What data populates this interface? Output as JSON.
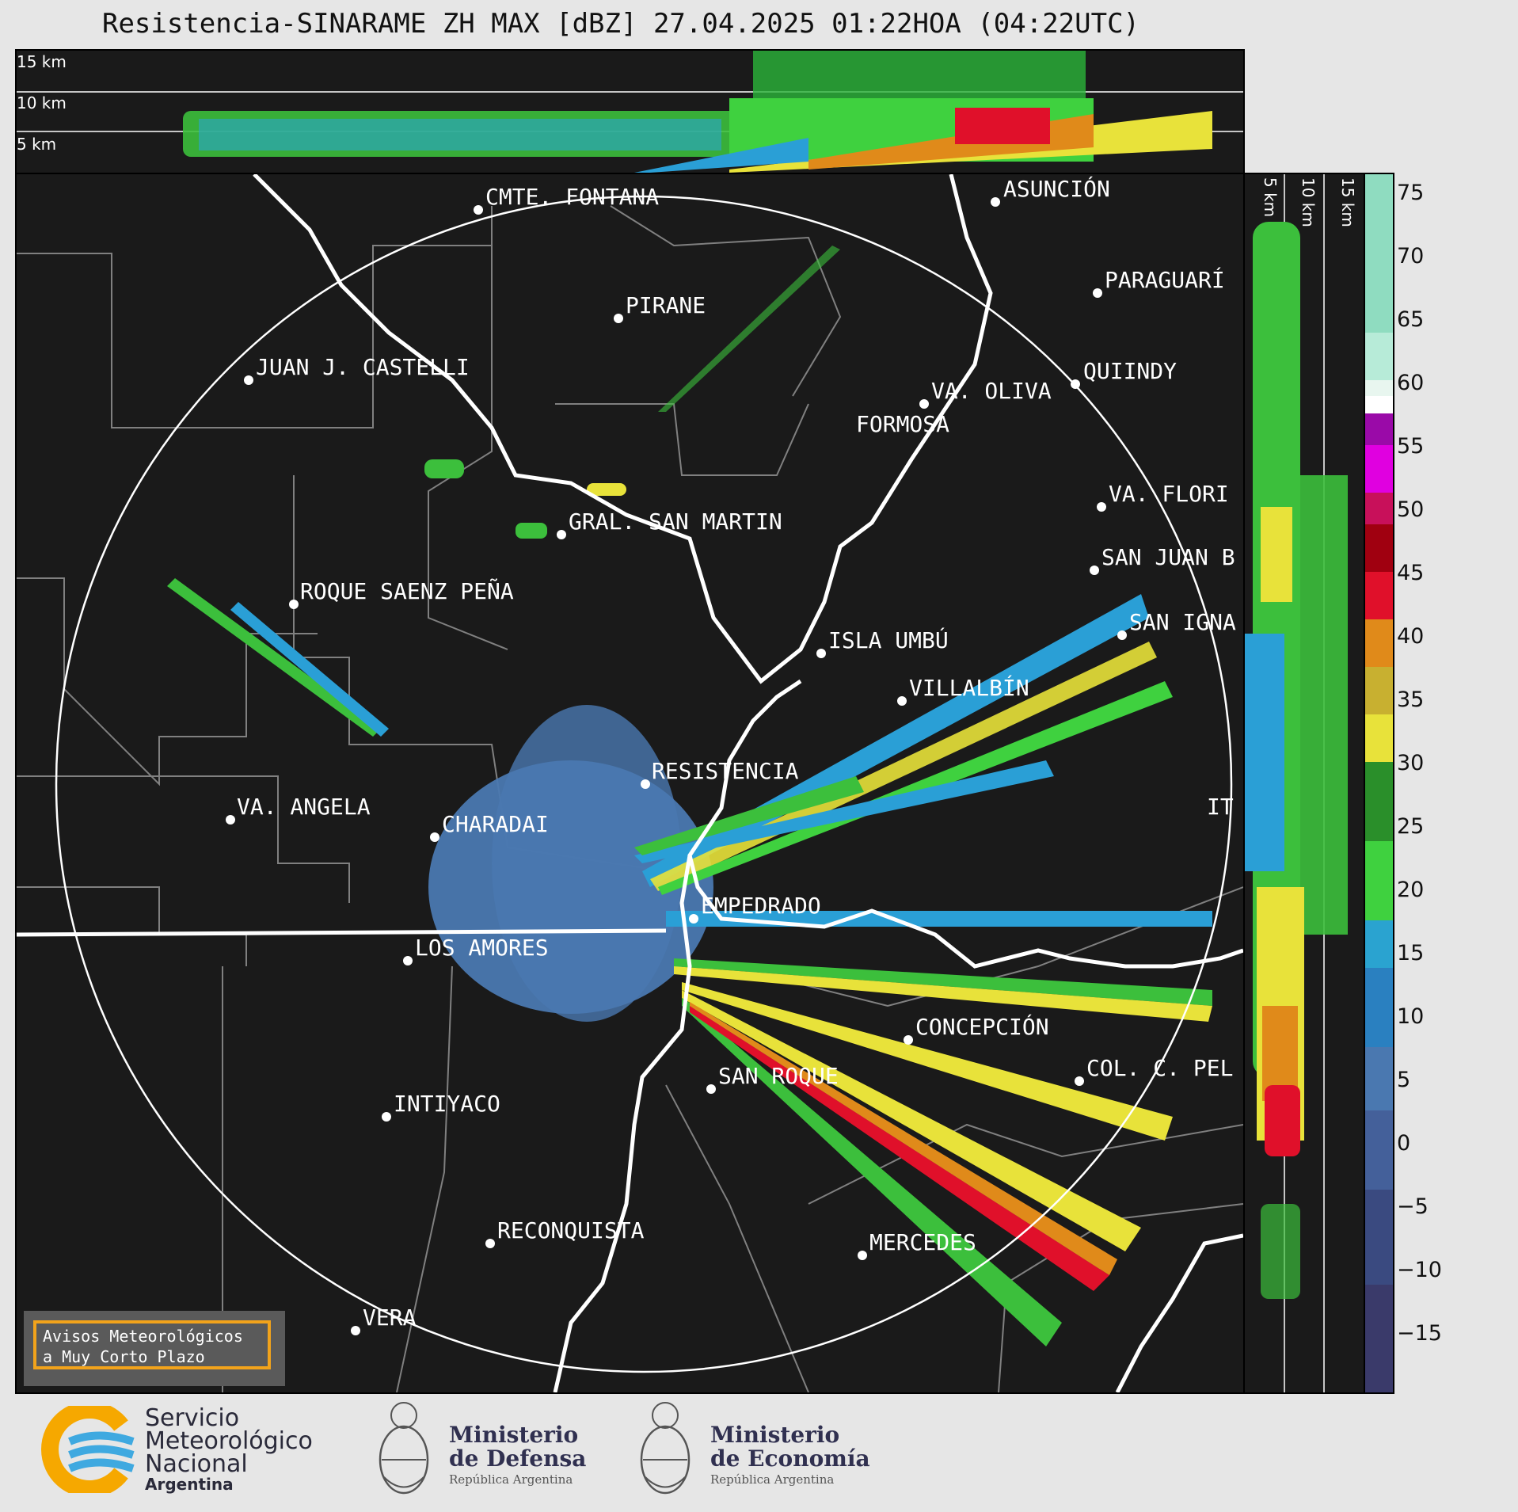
{
  "title": "Resistencia-SINARAME ZH MAX [dBZ] 27.04.2025 01:22HOA (04:22UTC)",
  "top_panel": {
    "height_labels": [
      "15 km",
      "10 km",
      "5 km"
    ]
  },
  "side_panel": {
    "height_labels": [
      "5 km",
      "10 km",
      "15 km"
    ]
  },
  "colorbar": {
    "ticks": [
      "75",
      "70",
      "65",
      "60",
      "55",
      "50",
      "45",
      "40",
      "35",
      "30",
      "25",
      "20",
      "15",
      "10",
      "5",
      "0",
      "−5",
      "−10",
      "−15"
    ]
  },
  "cities": [
    {
      "name": "CMTE. FONTANA"
    },
    {
      "name": "ASUNCIÓN"
    },
    {
      "name": "PARAGUARÍ"
    },
    {
      "name": "PIRANE"
    },
    {
      "name": "JUAN J. CASTELLI"
    },
    {
      "name": "VA. OLIVA"
    },
    {
      "name": "QUIINDY"
    },
    {
      "name": "FORMOSA"
    },
    {
      "name": "VA. FLORI"
    },
    {
      "name": "GRAL. SAN MARTIN"
    },
    {
      "name": "SAN JUAN B"
    },
    {
      "name": "ROQUE SAENZ PEÑA"
    },
    {
      "name": "SAN IGNA"
    },
    {
      "name": "ISLA UMBÚ"
    },
    {
      "name": "VILLALBÍN"
    },
    {
      "name": "RESISTENCIA"
    },
    {
      "name": "IT"
    },
    {
      "name": "VA. ANGELA"
    },
    {
      "name": "CHARADAI"
    },
    {
      "name": "EMPEDRADO"
    },
    {
      "name": "LOS AMORES"
    },
    {
      "name": "CONCEPCIÓN"
    },
    {
      "name": "COL. C. PEL"
    },
    {
      "name": "SAN ROQUE"
    },
    {
      "name": "INTIYACO"
    },
    {
      "name": "RECONQUISTA"
    },
    {
      "name": "MERCEDES"
    },
    {
      "name": "VERA"
    }
  ],
  "notice": {
    "line1": "Avisos Meteorológicos",
    "line2": "a Muy Corto Plazo"
  },
  "logos": {
    "smn": [
      "Servicio",
      "Meteorológico",
      "Nacional",
      "Argentina"
    ],
    "defensa": [
      "Ministerio",
      "de Defensa",
      "República Argentina"
    ],
    "economia": [
      "Ministerio",
      "de Economía",
      "República Argentina"
    ]
  },
  "colors": {
    "background": "#1a1a1a",
    "notice_border": "#f2a31b",
    "smn_orange": "#f6a800",
    "smn_blue": "#3fa9e0"
  }
}
